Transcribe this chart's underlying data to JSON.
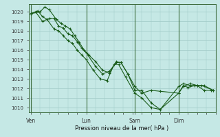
{
  "xlabel": "Pression niveau de la mer( hPa )",
  "bg_color": "#c5e8e5",
  "grid_color": "#9ec8c5",
  "line_color": "#1a5c1a",
  "vline_color": "#3a6a3a",
  "ylim": [
    1009.5,
    1020.8
  ],
  "yticks": [
    1010,
    1011,
    1012,
    1013,
    1014,
    1015,
    1016,
    1017,
    1018,
    1019,
    1020
  ],
  "xtick_labels": [
    "Ven",
    "Lun",
    "Sam",
    "Dim"
  ],
  "xtick_positions": [
    0,
    48,
    90,
    128
  ],
  "vline_positions": [
    0,
    48,
    90,
    128
  ],
  "xlim": [
    -2,
    160
  ],
  "series": [
    [
      1019.8,
      1020.0,
      1020.5,
      1020.2,
      1019.2,
      1018.8,
      1018.5,
      1018.2,
      1017.5,
      1016.8,
      1016.0,
      1015.5,
      1014.8,
      1013.9,
      1013.6,
      1014.8,
      1014.7,
      1013.5,
      1012.2,
      1011.5,
      1011.8,
      1011.7,
      1011.5,
      1012.2,
      1012.5,
      1012.3,
      1012.3,
      1011.8
    ],
    [
      1019.8,
      1020.1,
      1019.5,
      1019.2,
      1018.2,
      1018.0,
      1017.5,
      1017.0,
      1016.7,
      1016.0,
      1015.5,
      1015.0,
      1013.9,
      1013.0,
      1012.8,
      1014.5,
      1014.5,
      1013.2,
      1011.5,
      1011.0,
      1010.0,
      1009.8,
      1011.5,
      1012.3,
      1012.1,
      1012.3,
      1012.3,
      1011.8
    ],
    [
      1019.8,
      1020.0,
      1019.0,
      1019.3,
      1019.3,
      1018.5,
      1018.3,
      1017.7,
      1017.5,
      1016.9,
      1016.2,
      1015.7,
      1014.3,
      1013.5,
      1013.8,
      1014.7,
      1014.7,
      1013.5,
      1011.8,
      1011.8,
      1010.5,
      1009.8,
      1012.2,
      1012.5,
      1012.3,
      1012.3,
      1011.8,
      1011.8
    ]
  ],
  "series_x": [
    [
      0,
      8,
      12,
      16,
      22,
      26,
      30,
      34,
      38,
      42,
      46,
      50,
      56,
      62,
      68,
      74,
      78,
      84,
      90,
      96,
      104,
      112,
      128,
      132,
      138,
      144,
      150,
      158
    ],
    [
      0,
      6,
      10,
      14,
      20,
      24,
      28,
      32,
      36,
      40,
      44,
      48,
      54,
      60,
      66,
      72,
      76,
      82,
      90,
      96,
      104,
      112,
      128,
      132,
      136,
      142,
      148,
      158
    ],
    [
      0,
      4,
      10,
      16,
      20,
      24,
      28,
      32,
      36,
      40,
      44,
      48,
      56,
      62,
      68,
      74,
      78,
      84,
      90,
      96,
      104,
      112,
      128,
      132,
      138,
      144,
      150,
      156
    ]
  ]
}
